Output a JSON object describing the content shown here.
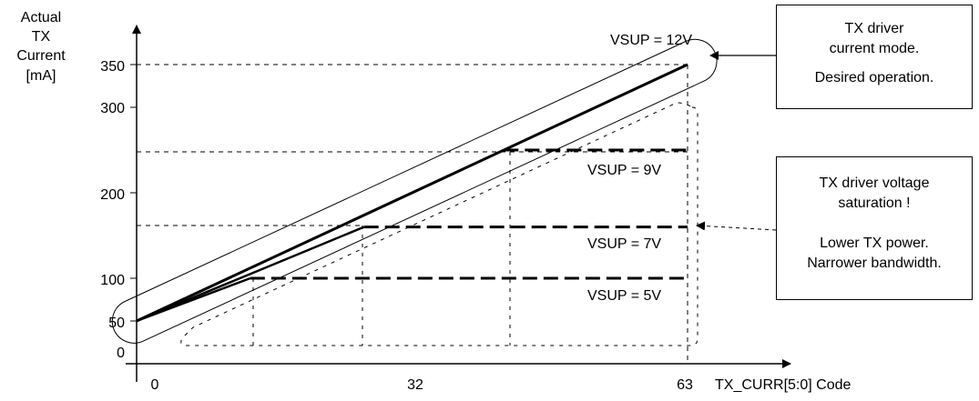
{
  "chart_data": {
    "type": "line",
    "ylabel": [
      "Actual",
      "TX",
      "Current",
      "[mA]"
    ],
    "xlabel": "TX_CURR[5:0] Code",
    "x_ticks": [
      0,
      32,
      63
    ],
    "y_ticks": [
      0,
      50,
      100,
      200,
      300,
      350
    ],
    "xlim": [
      0,
      63
    ],
    "ylim": [
      0,
      350
    ],
    "series": [
      {
        "name": "VSUP = 12V",
        "x": [
          0,
          63
        ],
        "y": [
          50,
          350
        ]
      },
      {
        "name": "VSUP = 9V",
        "x": [
          0,
          42,
          63
        ],
        "y": [
          50,
          250,
          250
        ]
      },
      {
        "name": "VSUP = 7V",
        "x": [
          0,
          26,
          63
        ],
        "y": [
          50,
          160,
          160
        ]
      },
      {
        "name": "VSUP = 5V",
        "x": [
          0,
          13,
          63
        ],
        "y": [
          50,
          100,
          100
        ]
      }
    ],
    "annotations": {
      "current_mode": [
        "TX driver",
        "current mode.",
        "Desired operation."
      ],
      "saturation": [
        "TX driver voltage",
        "saturation !",
        "",
        "Lower TX power.",
        "Narrower bandwidth."
      ]
    }
  }
}
